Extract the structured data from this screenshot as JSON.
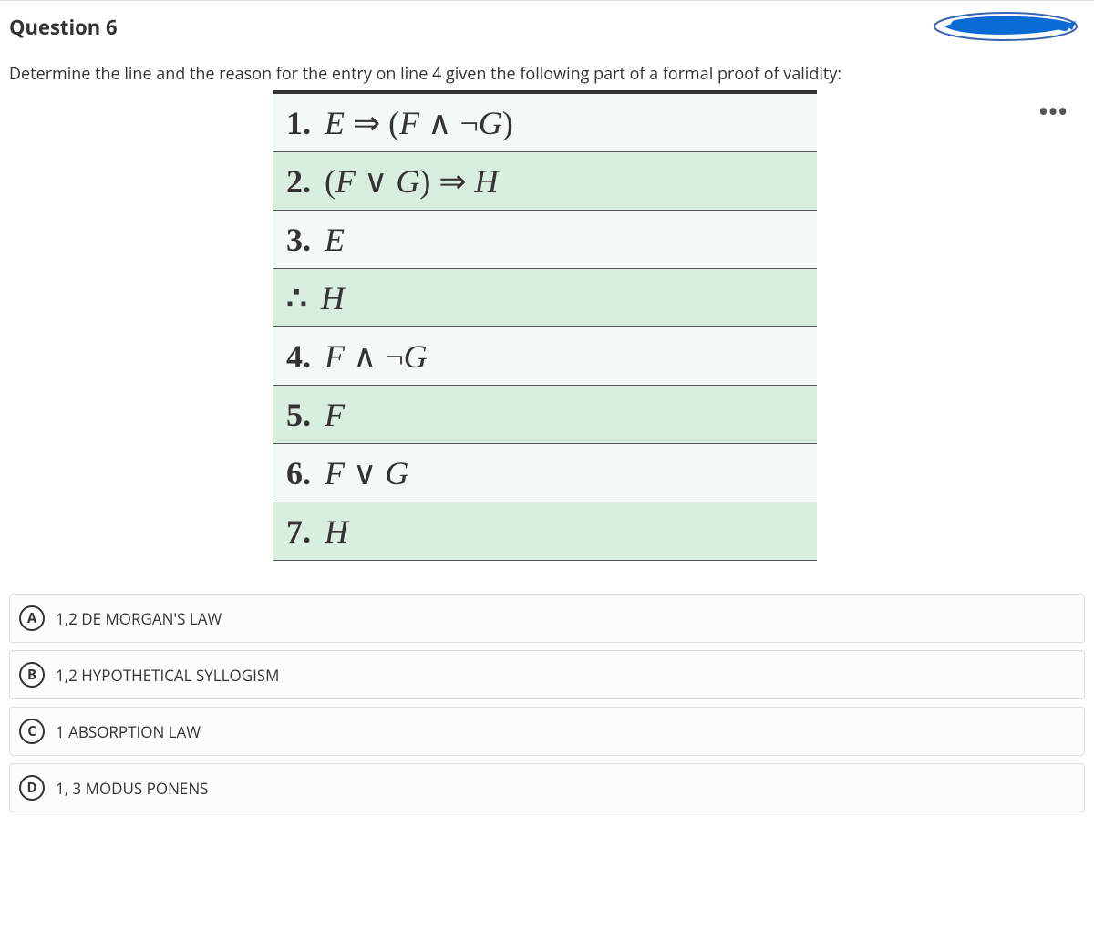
{
  "question": {
    "title": "Question 6",
    "prompt": "Determine the line and the reason for the entry on line 4 given the following part of a formal proof of validity:"
  },
  "proof": {
    "row_colors": {
      "light": "#f3faf5",
      "dark": "#daeee0"
    },
    "border_top_color": "#333333",
    "font_family": "Cambria Math, Times New Roman, serif",
    "font_size_pt": 27,
    "lines": [
      {
        "num": "1.",
        "expr": "E ⇒ (F ∧ ¬G)",
        "shade": "light"
      },
      {
        "num": "2.",
        "expr": "(F ∨ G) ⇒ H",
        "shade": "dark"
      },
      {
        "num": "3.",
        "expr": "E",
        "shade": "light"
      },
      {
        "num": "∴",
        "expr": "H",
        "shade": "dark"
      },
      {
        "num": "4.",
        "expr": "F ∧ ¬G",
        "shade": "light"
      },
      {
        "num": "5.",
        "expr": "F",
        "shade": "dark"
      },
      {
        "num": "6.",
        "expr": "F ∨ G",
        "shade": "light"
      },
      {
        "num": "7.",
        "expr": "H",
        "shade": "dark"
      }
    ]
  },
  "options": [
    {
      "letter": "A",
      "text": "1,2 DE MORGAN'S LAW"
    },
    {
      "letter": "B",
      "text": "1,2 HYPOTHETICAL SYLLOGISM"
    },
    {
      "letter": "C",
      "text": "1 ABSORPTION LAW"
    },
    {
      "letter": "D",
      "text": "1, 3 MODUS PONENS"
    }
  ],
  "icons": {
    "more": "•••"
  },
  "scribble": {
    "color": "#0b6bd4",
    "outline": "#3a65b0"
  }
}
